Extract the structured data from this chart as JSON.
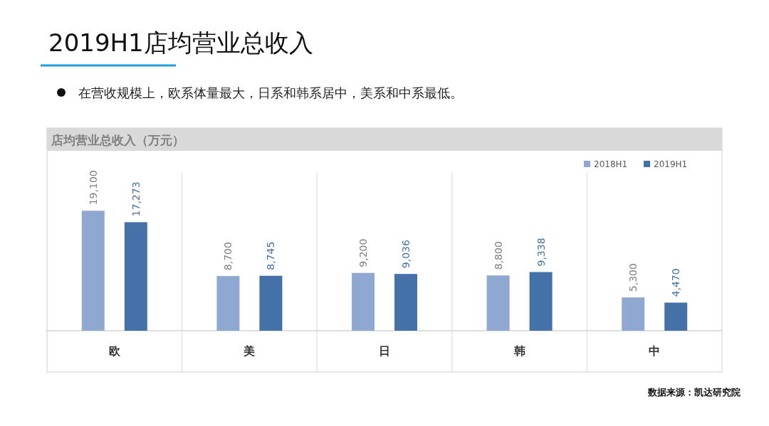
{
  "chart_data": {
    "type": "bar",
    "title": "2019H1店均营业总收入",
    "subtitle": "在营收规模上，欧系体量最大，日系和韩系居中，美系和中系最低。",
    "categories": [
      "欧",
      "美",
      "日",
      "韩",
      "中"
    ],
    "series": [
      {
        "name": "2018H1",
        "color": "#8fa8d1",
        "values": [
          19100,
          8700,
          9200,
          8800,
          5300
        ],
        "value_labels": [
          "19,100",
          "8,700",
          "9,200",
          "8,800",
          "5,300"
        ]
      },
      {
        "name": "2019H1",
        "color": "#4472a8",
        "values": [
          17273,
          8745,
          9036,
          9338,
          4470
        ],
        "value_labels": [
          "17,273",
          "8,745",
          "9,036",
          "9,338",
          "4,470"
        ]
      }
    ],
    "legend": "top right",
    "annotations": [
      "店均营业总收入（万元）",
      "数据来源：凯达研究院"
    ]
  }
}
